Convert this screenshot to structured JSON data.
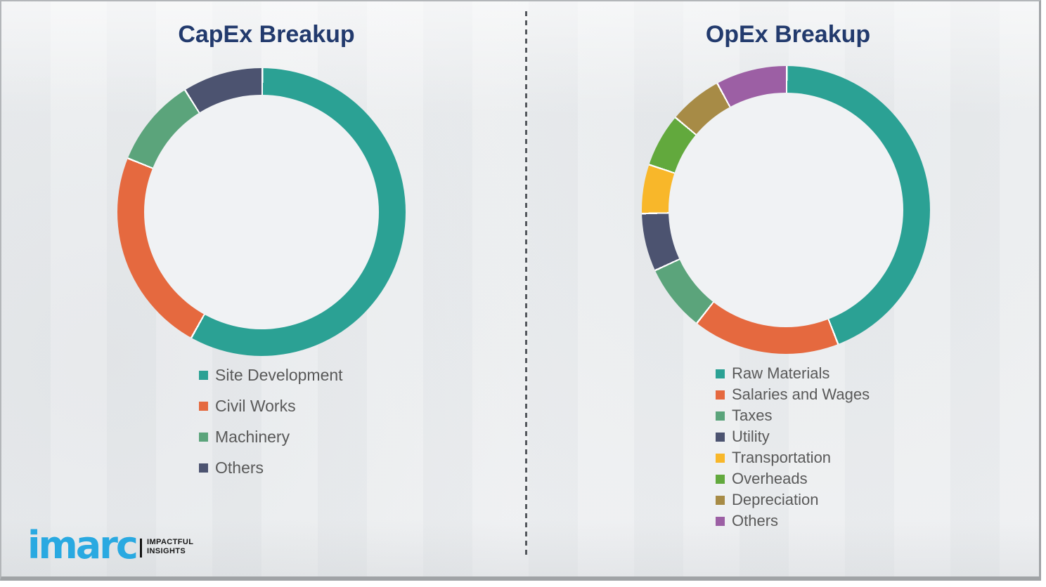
{
  "chart_data": [
    {
      "type": "pie",
      "subtype": "donut",
      "title": "CapEx Breakup",
      "labels": [
        "Site Development",
        "Civil Works",
        "Machinery",
        "Others"
      ],
      "values": [
        58,
        23,
        10,
        9
      ],
      "colors": [
        "#2ba194",
        "#e5693f",
        "#5ba47b",
        "#4c5370"
      ],
      "start_angle_deg": 0,
      "direction": "clockwise",
      "hole_ratio": 0.81,
      "legend_position": "bottom-left",
      "data_labels_shown": false
    },
    {
      "type": "pie",
      "subtype": "donut",
      "title": "OpEx Breakup",
      "labels": [
        "Raw Materials",
        "Salaries and Wages",
        "Taxes",
        "Utility",
        "Transportation",
        "Overheads",
        "Depreciation",
        "Others"
      ],
      "values": [
        44,
        16.5,
        7.5,
        6.5,
        5.5,
        6,
        6,
        8
      ],
      "colors": [
        "#2ba194",
        "#e5693f",
        "#5ba47b",
        "#4c5370",
        "#f8b72a",
        "#62a93d",
        "#a78b46",
        "#9c5fa4"
      ],
      "start_angle_deg": 0,
      "direction": "clockwise",
      "hole_ratio": 0.81,
      "legend_position": "bottom-left",
      "data_labels_shown": false
    }
  ],
  "divider": {
    "style": "vertical-dashed",
    "color": "#53575c"
  },
  "titles_color": "#223a6d",
  "legend_text_color": "#595959",
  "logo": {
    "brand": "imarc",
    "brand_color": "#29a9e1",
    "tagline": [
      "IMPACTFUL",
      "INSIGHTS"
    ]
  }
}
